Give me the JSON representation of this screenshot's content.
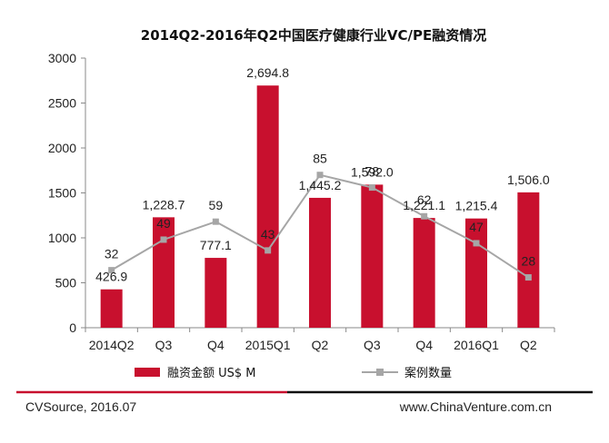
{
  "chart_data": {
    "type": "bar",
    "title": "2014Q2-2016年Q2中国医疗健康行业VC/PE融资情况",
    "categories": [
      "2014Q2",
      "Q3",
      "Q4",
      "2015Q1",
      "Q2",
      "Q3",
      "Q4",
      "2016Q1",
      "Q2"
    ],
    "ylim": [
      0,
      3000
    ],
    "yticks": [
      "0",
      "500",
      "1000",
      "1500",
      "2000",
      "2500",
      "3000"
    ],
    "grid": false,
    "legend_position": "bottom",
    "series": [
      {
        "name": "融资金额 US$ M",
        "type": "bar",
        "color": "#c8102e",
        "values": [
          426.9,
          1228.7,
          777.1,
          2694.8,
          1445.2,
          1592.0,
          1221.1,
          1215.4,
          1506.0
        ],
        "labels": [
          "426.9",
          "1,228.7",
          "777.1",
          "2,694.8",
          "1,445.2",
          "1,592.0",
          "1,221.1",
          "1,215.4",
          "1,506.0"
        ]
      },
      {
        "name": "案例数量",
        "type": "line",
        "color": "#a6a6a6",
        "values": [
          32,
          49,
          59,
          43,
          85,
          78,
          62,
          47,
          28
        ],
        "labels": [
          "32",
          "49",
          "59",
          "43",
          "85",
          "78",
          "62",
          "47",
          "28"
        ]
      }
    ]
  },
  "footer": {
    "source": "CVSource, 2016.07",
    "website": "www.ChinaVenture.com.cn",
    "accent_color": "#c8102e"
  }
}
